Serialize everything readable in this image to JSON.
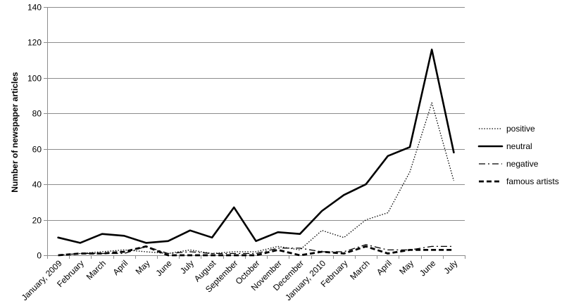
{
  "chart_data": {
    "type": "line",
    "title": "",
    "xlabel": "",
    "ylabel": "Number of newspaper articles",
    "ylim": [
      0,
      140
    ],
    "yticks": [
      0,
      20,
      40,
      60,
      80,
      100,
      120,
      140
    ],
    "grid": "horizontal",
    "legend_position": "right",
    "categories": [
      "January, 2009",
      "February",
      "March",
      "April",
      "May",
      "June",
      "July",
      "August",
      "September",
      "October",
      "November",
      "December",
      "January, 2010",
      "February",
      "March",
      "April",
      "May",
      "June",
      "July"
    ],
    "series": [
      {
        "name": "positive",
        "style": "dotted",
        "color": "#000000",
        "values": [
          0,
          1,
          2,
          3,
          2,
          1,
          3,
          1,
          2,
          2,
          5,
          3,
          14,
          10,
          20,
          24,
          47,
          86,
          42
        ]
      },
      {
        "name": "neutral",
        "style": "solid",
        "color": "#000000",
        "values": [
          10,
          7,
          12,
          11,
          7,
          8,
          14,
          10,
          27,
          8,
          13,
          12,
          25,
          34,
          40,
          56,
          61,
          116,
          58
        ]
      },
      {
        "name": "negative",
        "style": "dashdot",
        "color": "#000000",
        "values": [
          0,
          1,
          1,
          1,
          5,
          1,
          2,
          1,
          1,
          1,
          4,
          4,
          2,
          2,
          6,
          3,
          3,
          5,
          5
        ]
      },
      {
        "name": "famous artists",
        "style": "dashed",
        "color": "#000000",
        "values": [
          0,
          1,
          1,
          2,
          5,
          0,
          0,
          0,
          0,
          0,
          3,
          0,
          2,
          1,
          5,
          1,
          3,
          3,
          3
        ]
      }
    ]
  }
}
